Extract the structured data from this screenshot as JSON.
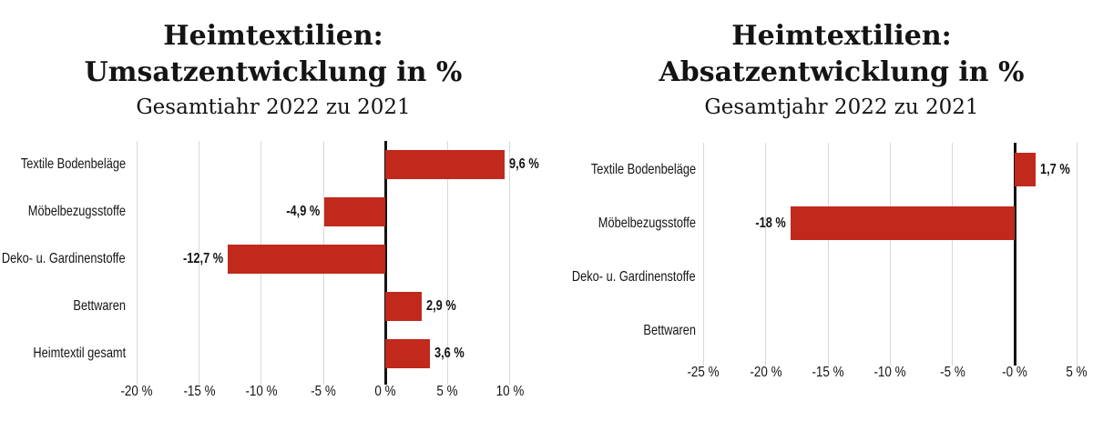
{
  "colors": {
    "bar": "#c0291c",
    "grid": "#d8d8d8",
    "axis": "#141414",
    "text": "#141414",
    "background": "#ffffff"
  },
  "chart_data": [
    {
      "type": "bar",
      "orientation": "horizontal",
      "title_line1": "Heimtextilien:",
      "title_line2": "Umsatzentwicklung in %",
      "subtitle": "Gesamtiahr 2022 zu 2021",
      "xlim": [
        -21.5,
        11.5
      ],
      "grid": true,
      "bars": [
        {
          "category": "Textile Bodenbeläge",
          "value": 9.6,
          "label": "9,6 %"
        },
        {
          "category": "Möbelbezugsstoffe",
          "value": -4.9,
          "label": "-4,9 %"
        },
        {
          "category": "Deko- u. Gardinenstoffe",
          "value": -12.7,
          "label": "-12,7 %"
        },
        {
          "category": "Bettwaren",
          "value": 2.9,
          "label": "2,9 %"
        },
        {
          "category": "Heimtextil gesamt",
          "value": 3.6,
          "label": "3,6 %"
        }
      ],
      "ticks": [
        {
          "v": -20,
          "label": "-20 %"
        },
        {
          "v": -15,
          "label": "-15 %"
        },
        {
          "v": -10,
          "label": "-10 %"
        },
        {
          "v": -5,
          "label": "-5 %"
        },
        {
          "v": 0,
          "label": "0 %"
        },
        {
          "v": 5,
          "label": "5 %"
        },
        {
          "v": 10,
          "label": "10 %"
        }
      ]
    },
    {
      "type": "bar",
      "orientation": "horizontal",
      "title_line1": "Heimtextilien:",
      "title_line2": "Absatzentwicklung in %",
      "subtitle": "Gesamtjahr 2022 zu 2021",
      "xlim": [
        -26.2,
        6.0
      ],
      "grid": true,
      "bars": [
        {
          "category": "Textile Bodenbeläge",
          "value": 1.7,
          "label": "1,7 %"
        },
        {
          "category": "Möbelbezugsstoffe",
          "value": -18,
          "label": "-18 %"
        },
        {
          "category": "Deko- u. Gardinenstoffe",
          "value": null,
          "label": ""
        },
        {
          "category": "Bettwaren",
          "value": null,
          "label": ""
        }
      ],
      "ticks": [
        {
          "v": -25,
          "label": "-25 %"
        },
        {
          "v": -20,
          "label": "-20 %"
        },
        {
          "v": -15,
          "label": "-15 %"
        },
        {
          "v": -10,
          "label": "-10 %"
        },
        {
          "v": -5,
          "label": "-5 %"
        },
        {
          "v": 0,
          "label": "-0 %"
        },
        {
          "v": 5,
          "label": "5 %"
        }
      ]
    }
  ]
}
